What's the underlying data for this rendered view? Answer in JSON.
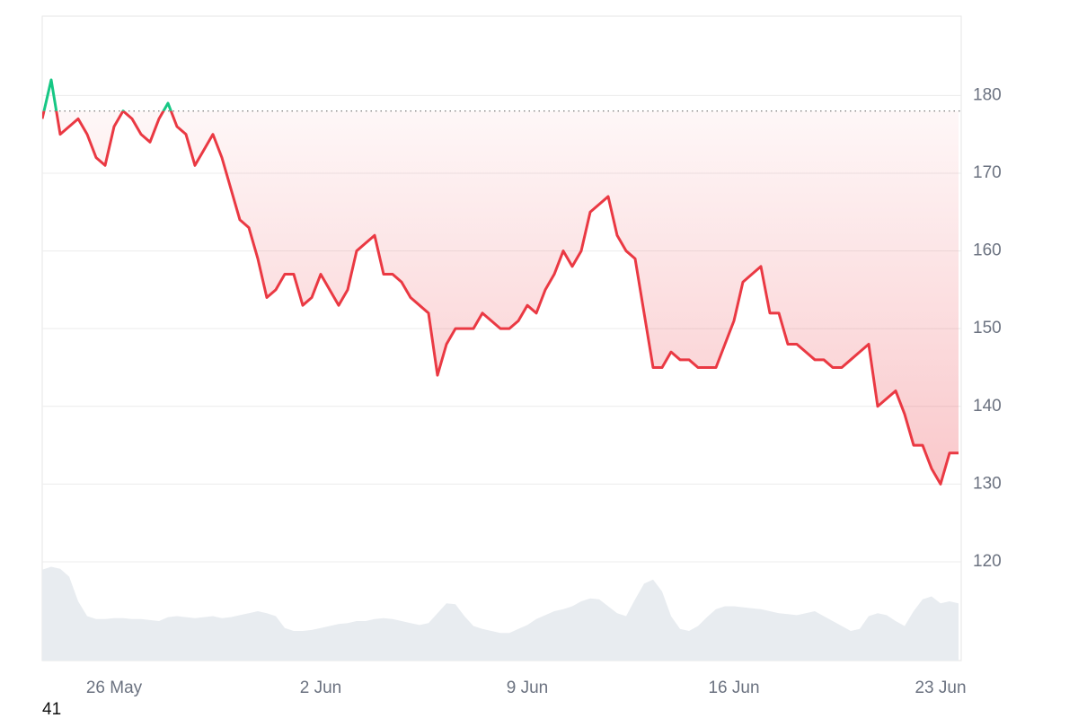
{
  "chart_data": {
    "type": "line",
    "categories": [
      null,
      null,
      null,
      null,
      null,
      null,
      null,
      null,
      "26 May",
      null,
      null,
      null,
      null,
      null,
      null,
      null,
      null,
      null,
      null,
      null,
      null,
      null,
      null,
      null,
      null,
      null,
      null,
      null,
      null,
      null,
      null,
      "2 Jun",
      null,
      null,
      null,
      null,
      null,
      null,
      null,
      null,
      null,
      null,
      null,
      null,
      null,
      null,
      null,
      null,
      null,
      null,
      null,
      null,
      null,
      null,
      "9 Jun",
      null,
      null,
      null,
      null,
      null,
      null,
      null,
      null,
      null,
      null,
      null,
      null,
      null,
      null,
      null,
      null,
      null,
      null,
      null,
      null,
      null,
      null,
      "16 Jun",
      null,
      null,
      null,
      null,
      null,
      null,
      null,
      null,
      null,
      null,
      null,
      null,
      null,
      null,
      null,
      null,
      null,
      null,
      null,
      null,
      null,
      null,
      "23 Jun",
      null,
      null
    ],
    "series": [
      {
        "values": [
          177,
          182,
          175,
          176,
          177,
          175,
          172,
          171,
          176,
          178,
          177,
          175,
          174,
          177,
          179,
          176,
          175,
          171,
          173,
          175,
          172,
          168,
          164,
          163,
          159,
          154,
          155,
          157,
          157,
          153,
          154,
          157,
          155,
          153,
          155,
          160,
          161,
          162,
          157,
          157,
          156,
          154,
          153,
          152,
          144,
          148,
          150,
          150,
          150,
          152,
          151,
          150,
          150,
          151,
          153,
          152,
          155,
          157,
          160,
          158,
          160,
          165,
          166,
          167,
          162,
          160,
          159,
          152,
          145,
          145,
          147,
          146,
          146,
          145,
          145,
          145,
          148,
          151,
          156,
          157,
          158,
          152,
          152,
          148,
          148,
          147,
          146,
          146,
          145,
          145,
          146,
          147,
          148,
          140,
          141,
          142,
          139,
          135,
          135,
          132,
          130,
          134,
          134
        ],
        "color": "#ea3943",
        "up_color": "#16c784"
      }
    ],
    "reference": 178,
    "volume": {
      "values": [
        92,
        95,
        93,
        85,
        60,
        45,
        42,
        42,
        43,
        43,
        42,
        42,
        41,
        40,
        44,
        45,
        44,
        43,
        44,
        45,
        43,
        44,
        46,
        48,
        50,
        48,
        45,
        33,
        30,
        30,
        31,
        33,
        35,
        37,
        38,
        40,
        40,
        42,
        43,
        42,
        40,
        38,
        36,
        38,
        48,
        58,
        57,
        45,
        35,
        32,
        30,
        28,
        28,
        32,
        36,
        42,
        46,
        50,
        52,
        55,
        60,
        63,
        62,
        55,
        48,
        45,
        62,
        78,
        82,
        70,
        45,
        32,
        30,
        35,
        44,
        52,
        55,
        55,
        54,
        53,
        52,
        50,
        48,
        47,
        46,
        48,
        50,
        45,
        40,
        35,
        30,
        32,
        45,
        48,
        46,
        40,
        35,
        50,
        62,
        65,
        58,
        60,
        58
      ],
      "color": "#e8ecf0",
      "vlim": [
        0,
        100
      ]
    },
    "ylim": [
      107.3,
      190.2
    ],
    "yticks": [
      120,
      130,
      140,
      150,
      160,
      170,
      180
    ],
    "grid": true,
    "corner_label": "41"
  }
}
